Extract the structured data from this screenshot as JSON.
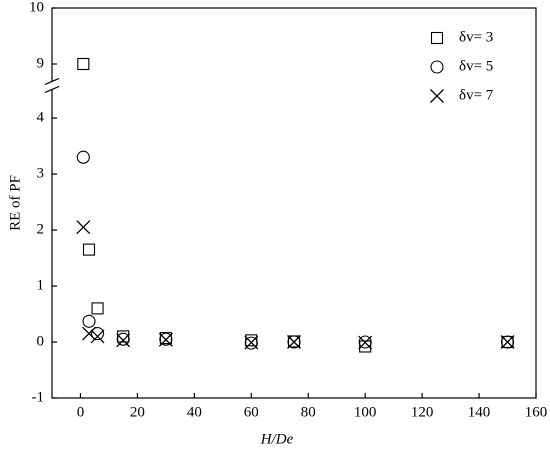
{
  "chart_data": {
    "type": "scatter",
    "x_label": "H/De",
    "y_label": "RE of PF",
    "xlim": [
      -10,
      160
    ],
    "xticks": [
      0,
      20,
      40,
      60,
      80,
      100,
      120,
      140,
      160
    ],
    "ylim": [
      -1,
      10
    ],
    "yticks": [
      -1,
      0,
      1,
      2,
      3,
      4,
      9,
      10
    ],
    "y_break": [
      4.6,
      8.6
    ],
    "legend": "upper right",
    "series": [
      {
        "name": "δv= 3",
        "marker": "square",
        "color": "#000000",
        "x": [
          1,
          3,
          6,
          15,
          30,
          60,
          75,
          100,
          150
        ],
        "values": [
          9,
          1.65,
          0.6,
          0.1,
          0.07,
          0.03,
          0.01,
          -0.08,
          0
        ]
      },
      {
        "name": "δv= 5",
        "marker": "circle",
        "color": "#000000",
        "x": [
          1,
          3,
          6,
          15,
          30,
          60,
          75,
          100,
          150
        ],
        "values": [
          3.3,
          0.37,
          0.15,
          0.05,
          0.05,
          -0.02,
          0,
          0,
          0
        ]
      },
      {
        "name": "δv= 7",
        "marker": "cross",
        "color": "#000000",
        "x": [
          1,
          3,
          6,
          15,
          30,
          60,
          75,
          100,
          150
        ],
        "values": [
          2.05,
          0.15,
          0.1,
          0.03,
          0.04,
          -0.01,
          0,
          -0.01,
          0
        ]
      }
    ]
  }
}
